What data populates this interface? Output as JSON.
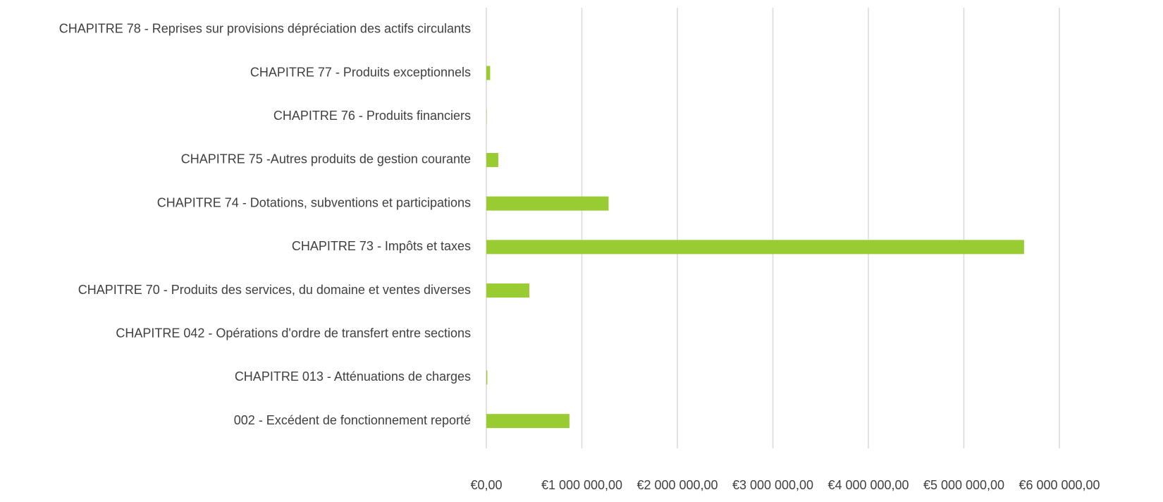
{
  "chart_data": {
    "type": "barh",
    "categories": [
      "CHAPITRE 78 - Reprises sur provisions dépréciation des actifs circulants",
      "CHAPITRE 77 - Produits exceptionnels",
      "CHAPITRE 76 - Produits financiers",
      "CHAPITRE 75 -Autres produits de gestion courante",
      "CHAPITRE 74 - Dotations, subventions et participations",
      "CHAPITRE 73 - Impôts et taxes",
      "CHAPITRE 70 - Produits des services, du domaine et ventes diverses",
      "CHAPITRE 042 - Opérations d'ordre de transfert entre sections",
      "CHAPITRE 013 - Atténuations de charges",
      "002 - Excédent de fonctionnement reporté"
    ],
    "values": [
      0,
      40000,
      3000,
      125000,
      1280000,
      5630000,
      450000,
      0,
      10000,
      870000
    ],
    "color": "#99cc33",
    "xlim": [
      0,
      6000000
    ],
    "xticks": [
      {
        "value": 0,
        "label": "€0,00"
      },
      {
        "value": 1000000,
        "label": "€1 000 000,00"
      },
      {
        "value": 2000000,
        "label": "€2 000 000,00"
      },
      {
        "value": 3000000,
        "label": "€3 000 000,00"
      },
      {
        "value": 4000000,
        "label": "€4 000 000,00"
      },
      {
        "value": 5000000,
        "label": "€5 000 000,00"
      },
      {
        "value": 6000000,
        "label": "€6 000 000,00"
      }
    ],
    "grid": true
  }
}
